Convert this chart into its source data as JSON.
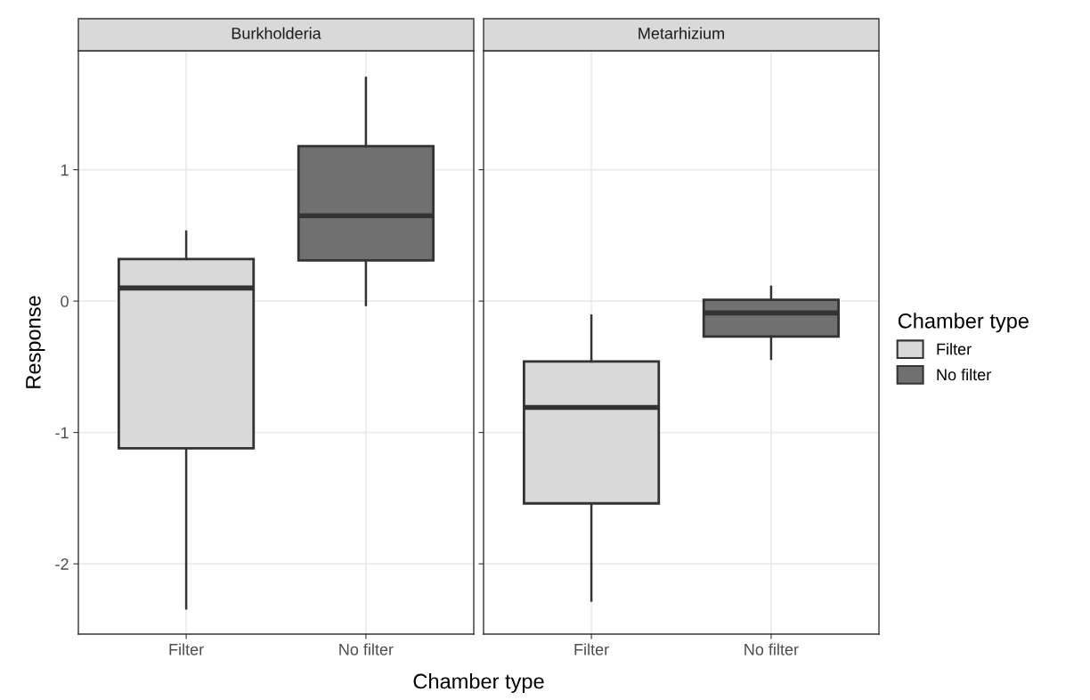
{
  "chart_data": [
    {
      "type": "box",
      "title": "Burkholderia",
      "categories": [
        "Filter",
        "No filter"
      ],
      "xlabel": "Chamber type",
      "ylabel": "Response",
      "ylim": [
        -2.535,
        1.906
      ],
      "yticks": [
        -2,
        -1,
        0,
        1
      ],
      "grid": true,
      "series": [
        {
          "color": "#d9d9d9",
          "boxes": [
            {
              "low": -2.34,
              "q1": -1.12,
              "median": 0.1,
              "q3": 0.32,
              "high": 0.53
            },
            null
          ]
        },
        {
          "color": "#707070",
          "boxes": [
            null,
            {
              "low": -0.03,
              "q1": 0.31,
              "median": 0.65,
              "q3": 1.18,
              "high": 1.7
            }
          ]
        }
      ]
    },
    {
      "type": "box",
      "title": "Metarhizium",
      "categories": [
        "Filter",
        "No filter"
      ],
      "ylim": [
        -2.535,
        1.906
      ],
      "yticks": [
        -2,
        -1,
        0,
        1
      ],
      "grid": true,
      "tick_labels": "x",
      "legend": "right",
      "legend_title": "Chamber type",
      "series": [
        {
          "name": "Filter",
          "color": "#d9d9d9",
          "boxes": [
            {
              "low": -2.28,
              "q1": -1.54,
              "median": -0.81,
              "q3": -0.46,
              "high": -0.11
            },
            null
          ]
        },
        {
          "name": "No filter",
          "color": "#707070",
          "boxes": [
            null,
            {
              "low": -0.44,
              "q1": -0.27,
              "median": -0.09,
              "q3": 0.01,
              "high": 0.11
            }
          ]
        }
      ]
    }
  ]
}
